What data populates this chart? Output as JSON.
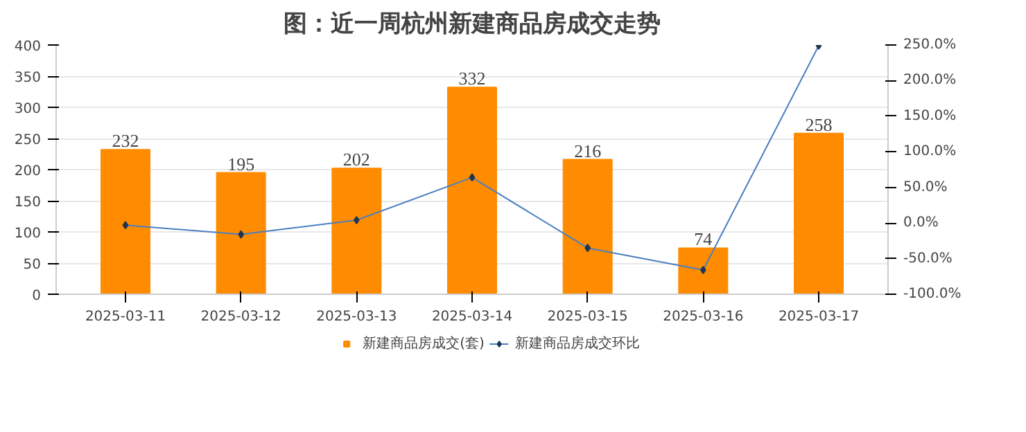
{
  "chart_data": {
    "type": "bar",
    "title": "图：近一周杭州新建商品房成交走势",
    "categories": [
      "2025-03-11",
      "2025-03-12",
      "2025-03-13",
      "2025-03-14",
      "2025-03-15",
      "2025-03-16",
      "2025-03-17"
    ],
    "series": [
      {
        "name": "新建商品房成交(套)",
        "color": "#ff8c00",
        "values": [
          232,
          195,
          202,
          332,
          216,
          74,
          258
        ],
        "value_labels": [
          "232",
          "195",
          "202",
          "332",
          "216",
          "74",
          "258"
        ]
      },
      {
        "name": "新建商品房成交环比",
        "color": "#4a7fc0",
        "type": "line",
        "axis": "y2",
        "marker": "diamond",
        "values": [
          -3,
          -16,
          4,
          64,
          -35,
          -66,
          249
        ]
      }
    ],
    "ylim": [
      0,
      400
    ],
    "yticks": [
      0,
      50,
      100,
      150,
      200,
      250,
      300,
      350,
      400
    ],
    "y2lim": [
      -100,
      250
    ],
    "y2ticks": [
      {
        "value": -100,
        "label": "-100.0%"
      },
      {
        "value": -50,
        "label": "-50.0%"
      },
      {
        "value": 0,
        "label": "0.0%"
      },
      {
        "value": 50,
        "label": "50.0%"
      },
      {
        "value": 100,
        "label": "100.0%"
      },
      {
        "value": 150,
        "label": "150.0%"
      },
      {
        "value": 200,
        "label": "200.0%"
      },
      {
        "value": 250,
        "label": "250.0%"
      }
    ],
    "grid": "y",
    "legend": "bottom"
  }
}
